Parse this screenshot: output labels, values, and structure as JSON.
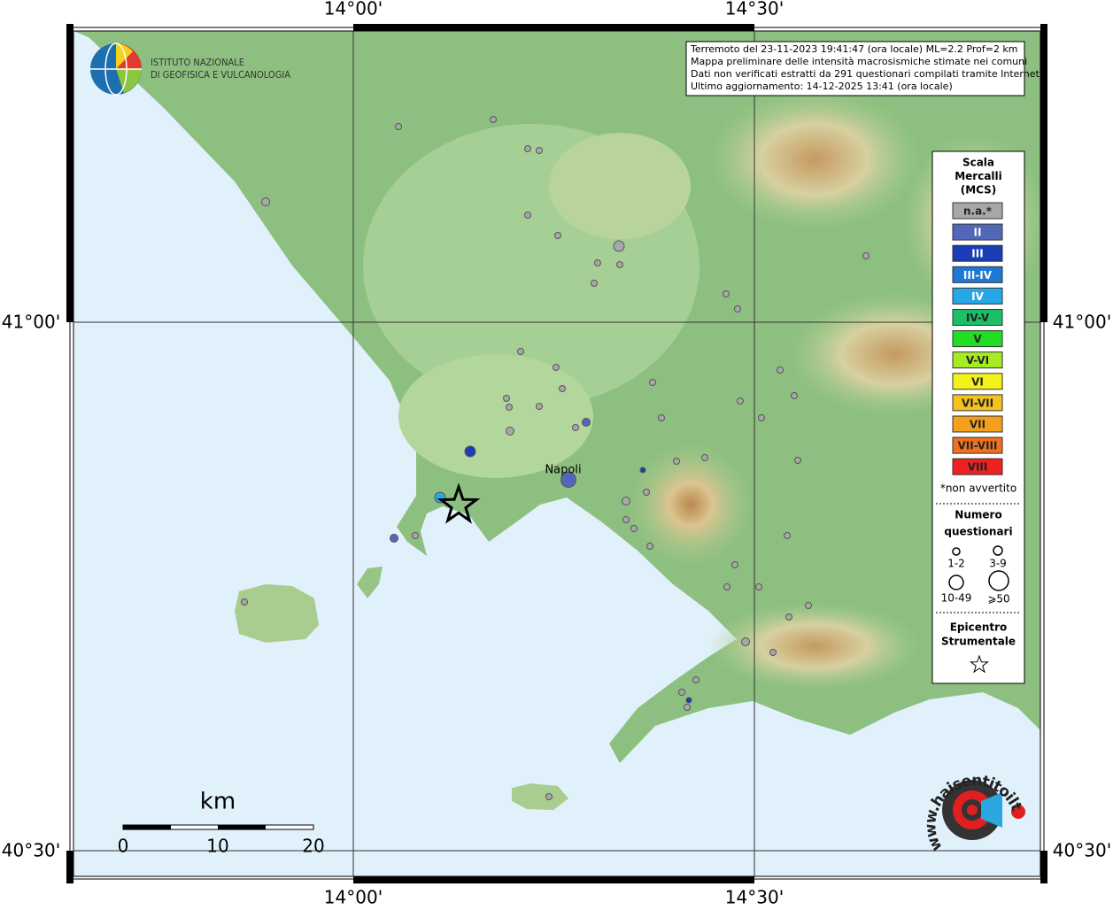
{
  "graticule": {
    "top": [
      "14°00'",
      "14°30'"
    ],
    "bottom": [
      "14°00'",
      "14°30'"
    ],
    "left": [
      "41°00'",
      "40°30'"
    ],
    "right": [
      "41°00'",
      "40°30'"
    ]
  },
  "logo": {
    "line1": "ISTITUTO NAZIONALE",
    "line2": "DI GEOFISICA E VULCANOLOGIA"
  },
  "info": {
    "lines": [
      "Terremoto del 23-11-2023 19:41:47 (ora locale) ML=2.2 Prof=2 km",
      "Mappa preliminare delle intensità macrosismiche stimate nei comuni",
      "Dati non verificati estratti da 291 questionari compilati tramite Internet.",
      "Ultimo aggiornamento: 14-12-2025 13:41 (ora locale)"
    ]
  },
  "legend": {
    "title": [
      "Scala",
      "Mercalli",
      "(MCS)"
    ],
    "classes": [
      {
        "label": "n.a.*",
        "color": "#a8a8a8"
      },
      {
        "label": "II",
        "color": "#5367b8"
      },
      {
        "label": "III",
        "color": "#1a3cb4"
      },
      {
        "label": "III-IV",
        "color": "#1e78d6"
      },
      {
        "label": "IV",
        "color": "#27a8e6"
      },
      {
        "label": "IV-V",
        "color": "#1cbf66"
      },
      {
        "label": "V",
        "color": "#22de22"
      },
      {
        "label": "V-VI",
        "color": "#a6ec22"
      },
      {
        "label": "VI",
        "color": "#f2f21a"
      },
      {
        "label": "VI-VII",
        "color": "#f4c21c"
      },
      {
        "label": "VII",
        "color": "#f5a01c"
      },
      {
        "label": "VII-VIII",
        "color": "#f07020"
      },
      {
        "label": "VIII",
        "color": "#ee2020"
      }
    ],
    "note": "*non avvertito",
    "size_title": [
      "Numero",
      "questionari"
    ],
    "sizes": [
      "1-2",
      "3-9",
      "10-49",
      "⩾50"
    ],
    "epicenter_title": [
      "Epicentro",
      "Strumentale"
    ]
  },
  "scale": {
    "unit": "km",
    "labels": [
      "0",
      "10",
      "20"
    ]
  },
  "place": "Napoli",
  "watermark": "www.haisentitoilterremoto.it"
}
